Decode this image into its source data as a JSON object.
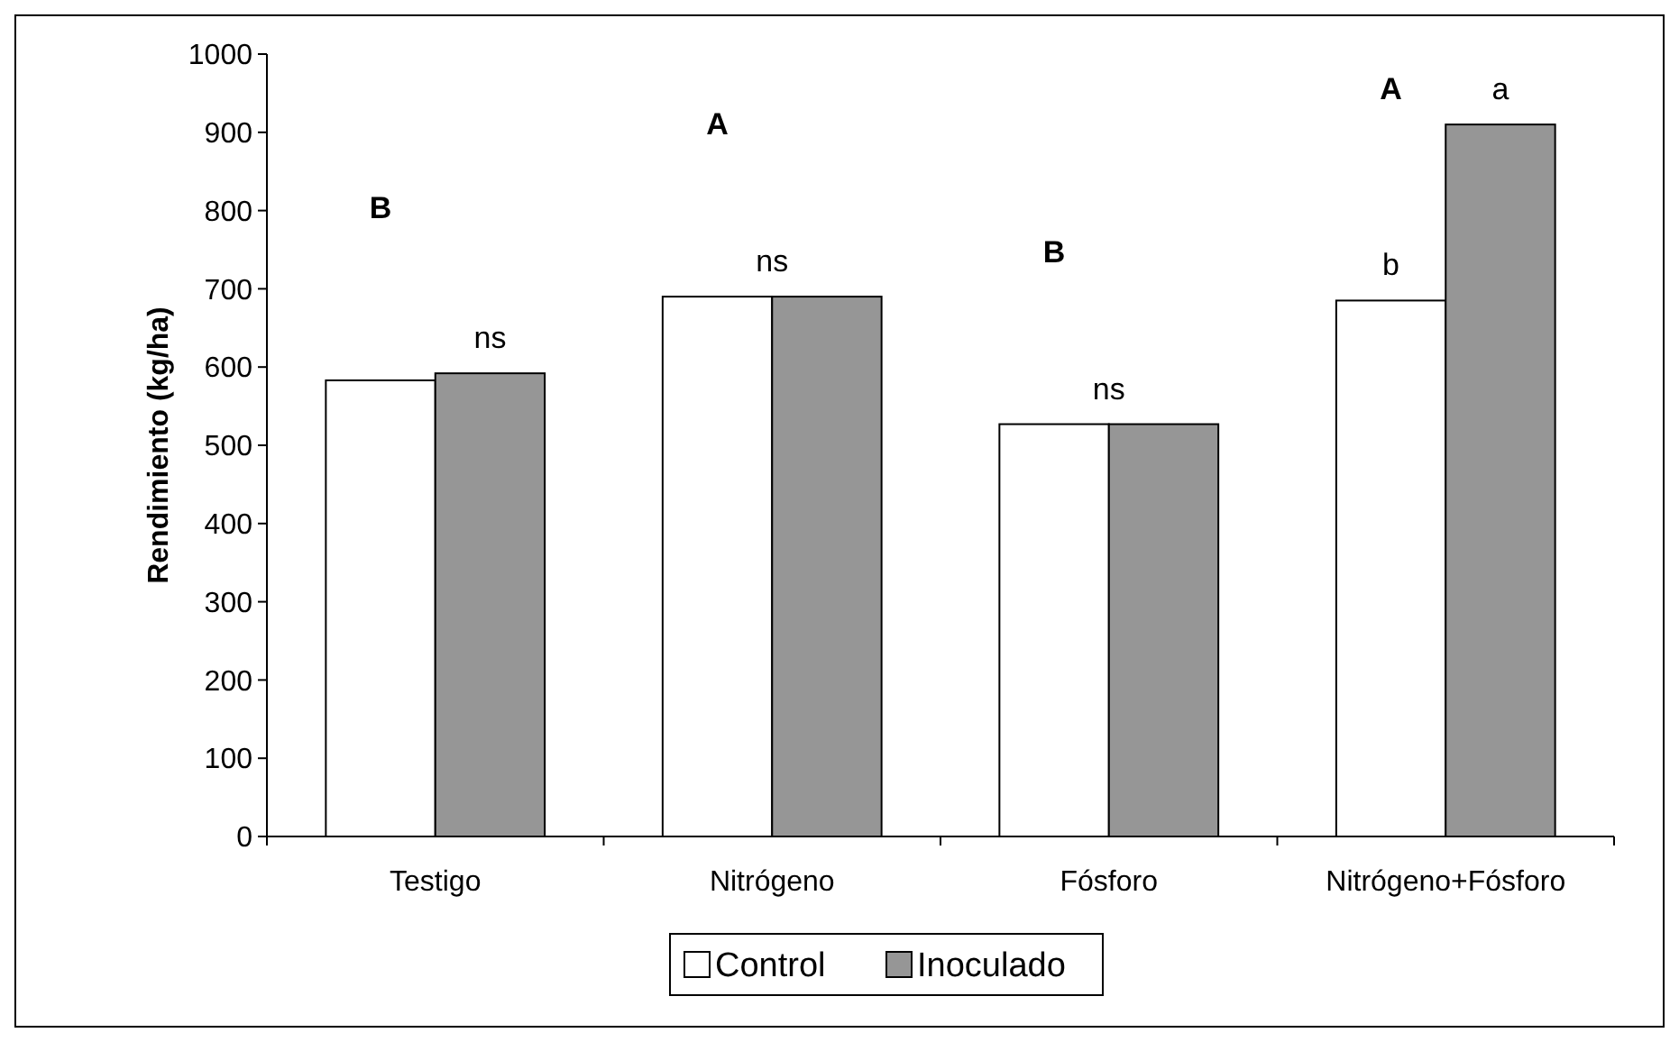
{
  "chart_data": {
    "type": "bar",
    "ylabel": "Rendimiento (kg/ha)",
    "categories": [
      "Testigo",
      "Nitrógeno",
      "Fósforo",
      "Nitrógeno+Fósforo"
    ],
    "series": [
      {
        "name": "Control",
        "color": "#ffffff",
        "values": [
          583,
          690,
          527,
          685
        ]
      },
      {
        "name": "Inoculado",
        "color": "#969696",
        "values": [
          592,
          690,
          527,
          910
        ]
      }
    ],
    "ylim": [
      0,
      1000
    ],
    "yticks": [
      0,
      100,
      200,
      300,
      400,
      500,
      600,
      700,
      800,
      900,
      1000
    ],
    "annotations": [
      {
        "text": "ns",
        "x": "Testigo",
        "y": 592
      },
      "B",
      {
        "text": "ns",
        "x": "Nitrógeno",
        "y": 690
      },
      "A",
      {
        "text": "ns",
        "x": "Fósforo",
        "y": 527
      },
      "B",
      {
        "text": "b",
        "x": "Nitrógeno+Fósforo",
        "y": 685
      },
      "A",
      {
        "text": "a",
        "x": "Nitrógeno+Fósforo",
        "y": 910
      }
    ],
    "legend": "bottom",
    "grid": false
  }
}
